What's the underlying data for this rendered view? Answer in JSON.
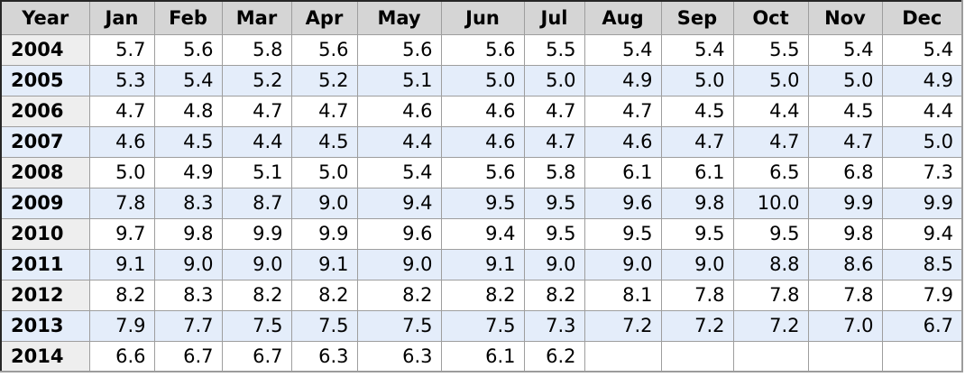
{
  "table": {
    "columns": [
      "Year",
      "Jan",
      "Feb",
      "Mar",
      "Apr",
      "May",
      "Jun",
      "Jul",
      "Aug",
      "Sep",
      "Oct",
      "Nov",
      "Dec"
    ],
    "rows": [
      {
        "year": "2004",
        "values": [
          "5.7",
          "5.6",
          "5.8",
          "5.6",
          "5.6",
          "5.6",
          "5.5",
          "5.4",
          "5.4",
          "5.5",
          "5.4",
          "5.4"
        ]
      },
      {
        "year": "2005",
        "values": [
          "5.3",
          "5.4",
          "5.2",
          "5.2",
          "5.1",
          "5.0",
          "5.0",
          "4.9",
          "5.0",
          "5.0",
          "5.0",
          "4.9"
        ]
      },
      {
        "year": "2006",
        "values": [
          "4.7",
          "4.8",
          "4.7",
          "4.7",
          "4.6",
          "4.6",
          "4.7",
          "4.7",
          "4.5",
          "4.4",
          "4.5",
          "4.4"
        ]
      },
      {
        "year": "2007",
        "values": [
          "4.6",
          "4.5",
          "4.4",
          "4.5",
          "4.4",
          "4.6",
          "4.7",
          "4.6",
          "4.7",
          "4.7",
          "4.7",
          "5.0"
        ]
      },
      {
        "year": "2008",
        "values": [
          "5.0",
          "4.9",
          "5.1",
          "5.0",
          "5.4",
          "5.6",
          "5.8",
          "6.1",
          "6.1",
          "6.5",
          "6.8",
          "7.3"
        ]
      },
      {
        "year": "2009",
        "values": [
          "7.8",
          "8.3",
          "8.7",
          "9.0",
          "9.4",
          "9.5",
          "9.5",
          "9.6",
          "9.8",
          "10.0",
          "9.9",
          "9.9"
        ]
      },
      {
        "year": "2010",
        "values": [
          "9.7",
          "9.8",
          "9.9",
          "9.9",
          "9.6",
          "9.4",
          "9.5",
          "9.5",
          "9.5",
          "9.5",
          "9.8",
          "9.4"
        ]
      },
      {
        "year": "2011",
        "values": [
          "9.1",
          "9.0",
          "9.0",
          "9.1",
          "9.0",
          "9.1",
          "9.0",
          "9.0",
          "9.0",
          "8.8",
          "8.6",
          "8.5"
        ]
      },
      {
        "year": "2012",
        "values": [
          "8.2",
          "8.3",
          "8.2",
          "8.2",
          "8.2",
          "8.2",
          "8.2",
          "8.1",
          "7.8",
          "7.8",
          "7.8",
          "7.9"
        ]
      },
      {
        "year": "2013",
        "values": [
          "7.9",
          "7.7",
          "7.5",
          "7.5",
          "7.5",
          "7.5",
          "7.3",
          "7.2",
          "7.2",
          "7.2",
          "7.0",
          "6.7"
        ]
      },
      {
        "year": "2014",
        "values": [
          "6.6",
          "6.7",
          "6.7",
          "6.3",
          "6.3",
          "6.1",
          "6.2",
          "",
          "",
          "",
          "",
          ""
        ]
      }
    ]
  },
  "chart_data": {
    "type": "table",
    "title": "",
    "columns": [
      "Year",
      "Jan",
      "Feb",
      "Mar",
      "Apr",
      "May",
      "Jun",
      "Jul",
      "Aug",
      "Sep",
      "Oct",
      "Nov",
      "Dec"
    ],
    "rows": [
      [
        "2004",
        5.7,
        5.6,
        5.8,
        5.6,
        5.6,
        5.6,
        5.5,
        5.4,
        5.4,
        5.5,
        5.4,
        5.4
      ],
      [
        "2005",
        5.3,
        5.4,
        5.2,
        5.2,
        5.1,
        5.0,
        5.0,
        4.9,
        5.0,
        5.0,
        5.0,
        4.9
      ],
      [
        "2006",
        4.7,
        4.8,
        4.7,
        4.7,
        4.6,
        4.6,
        4.7,
        4.7,
        4.5,
        4.4,
        4.5,
        4.4
      ],
      [
        "2007",
        4.6,
        4.5,
        4.4,
        4.5,
        4.4,
        4.6,
        4.7,
        4.6,
        4.7,
        4.7,
        4.7,
        5.0
      ],
      [
        "2008",
        5.0,
        4.9,
        5.1,
        5.0,
        5.4,
        5.6,
        5.8,
        6.1,
        6.1,
        6.5,
        6.8,
        7.3
      ],
      [
        "2009",
        7.8,
        8.3,
        8.7,
        9.0,
        9.4,
        9.5,
        9.5,
        9.6,
        9.8,
        10.0,
        9.9,
        9.9
      ],
      [
        "2010",
        9.7,
        9.8,
        9.9,
        9.9,
        9.6,
        9.4,
        9.5,
        9.5,
        9.5,
        9.5,
        9.8,
        9.4
      ],
      [
        "2011",
        9.1,
        9.0,
        9.0,
        9.1,
        9.0,
        9.1,
        9.0,
        9.0,
        9.0,
        8.8,
        8.6,
        8.5
      ],
      [
        "2012",
        8.2,
        8.3,
        8.2,
        8.2,
        8.2,
        8.2,
        8.2,
        8.1,
        7.8,
        7.8,
        7.8,
        7.9
      ],
      [
        "2013",
        7.9,
        7.7,
        7.5,
        7.5,
        7.5,
        7.5,
        7.3,
        7.2,
        7.2,
        7.2,
        7.0,
        6.7
      ],
      [
        "2014",
        6.6,
        6.7,
        6.7,
        6.3,
        6.3,
        6.1,
        6.2,
        null,
        null,
        null,
        null,
        null
      ]
    ]
  },
  "colors": {
    "header_bg": "#d5d5d5",
    "year_col_bg": "#eeeeee",
    "stripe_bg": "#e4edfa",
    "row_bg": "#ffffff",
    "border_inner": "#9e9e9e",
    "border_outer_dark": "#262626",
    "border_outer_light": "#9c9c9c"
  }
}
